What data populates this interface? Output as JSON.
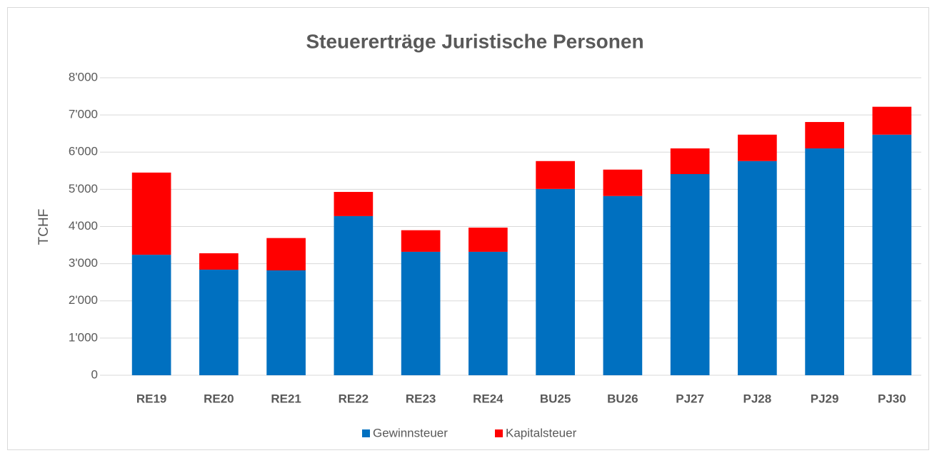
{
  "chart_data": {
    "type": "stacked_bar",
    "title": "Steuererträge Juristische Personen",
    "y_label": "TCHF",
    "categories": [
      "RE19",
      "RE20",
      "RE21",
      "RE22",
      "RE23",
      "RE24",
      "BU25",
      "BU26",
      "PJ27",
      "PJ28",
      "PJ29",
      "PJ30"
    ],
    "series": [
      {
        "name": "Gewinnsteuer",
        "color": "#0070c0",
        "values": [
          3240,
          2840,
          2820,
          4280,
          3320,
          3320,
          5010,
          4820,
          5410,
          5760,
          6100,
          6470
        ]
      },
      {
        "name": "Kapitalsteuer",
        "color": "#ff0000",
        "values": [
          2210,
          440,
          870,
          650,
          580,
          650,
          750,
          710,
          690,
          710,
          710,
          750
        ]
      }
    ],
    "ylim": [
      0,
      8000
    ],
    "yticks": [
      0,
      {
        "value": 1000,
        "label": "1'000"
      },
      {
        "value": 2000,
        "label": "2'000"
      },
      {
        "value": 3000,
        "label": "3'000"
      },
      {
        "value": 4000,
        "label": "4'000"
      },
      {
        "value": 5000,
        "label": "5'000"
      },
      {
        "value": 6000,
        "label": "6'000"
      },
      {
        "value": 7000,
        "label": "7'000"
      },
      {
        "value": 8000,
        "label": "8'000"
      }
    ],
    "grid": true,
    "legend": "bottom"
  }
}
